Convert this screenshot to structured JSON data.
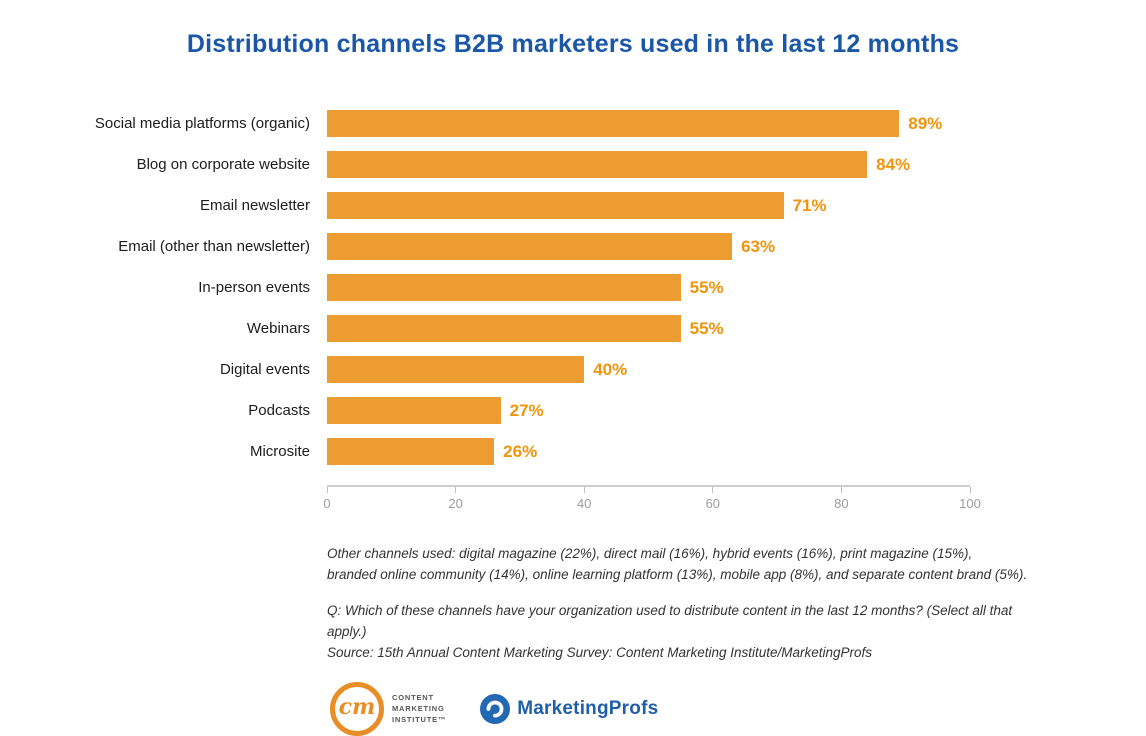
{
  "title": "Distribution channels B2B marketers used in the last 12 months",
  "chart_data": {
    "type": "bar",
    "orientation": "horizontal",
    "title": "Distribution channels B2B marketers used in the last 12 months",
    "categories": [
      "Social media platforms (organic)",
      "Blog on corporate website",
      "Email newsletter",
      "Email (other than newsletter)",
      "In-person events",
      "Webinars",
      "Digital events",
      "Podcasts",
      "Microsite"
    ],
    "values": [
      89,
      84,
      71,
      63,
      55,
      55,
      40,
      27,
      26
    ],
    "value_labels": [
      "89%",
      "84%",
      "71%",
      "63%",
      "55%",
      "55%",
      "40%",
      "27%",
      "26%"
    ],
    "xlabel": "",
    "ylabel": "",
    "xlim": [
      0,
      100
    ],
    "x_ticks": [
      0,
      20,
      40,
      60,
      80,
      100
    ],
    "grid": false,
    "legend": "none",
    "bar_color": "#EC9C31",
    "value_label_color": "#F0950B"
  },
  "notes": {
    "other_line1": "Other channels used: digital magazine (22%), direct mail (16%), hybrid events (16%), print magazine (15%),",
    "other_line2": "branded online community (14%), online learning platform (13%), mobile app (8%), and separate content brand (5%).",
    "question": "Q: Which of these channels have your organization used to distribute content in the last 12 months? (Select all that apply.)",
    "source": "Source: 15th Annual Content Marketing Survey: Content Marketing Institute/MarketingProfs"
  },
  "footer": {
    "cmi_initials": "cm",
    "cmi_lines": [
      "CONTENT",
      "MARKETING",
      "INSTITUTE™"
    ],
    "marketingprofs_label": "MarketingProfs"
  },
  "colors": {
    "title_blue": "#1A57A7",
    "bar_orange": "#EC9C31",
    "value_orange": "#F0950B",
    "axis_text_gray": "#9D9D9D",
    "label_dark": "#1C1C1C",
    "notes_gray": "#333333",
    "cmi_orange": "#E98E27",
    "marketingprofs_blue": "#1F5FA9"
  }
}
